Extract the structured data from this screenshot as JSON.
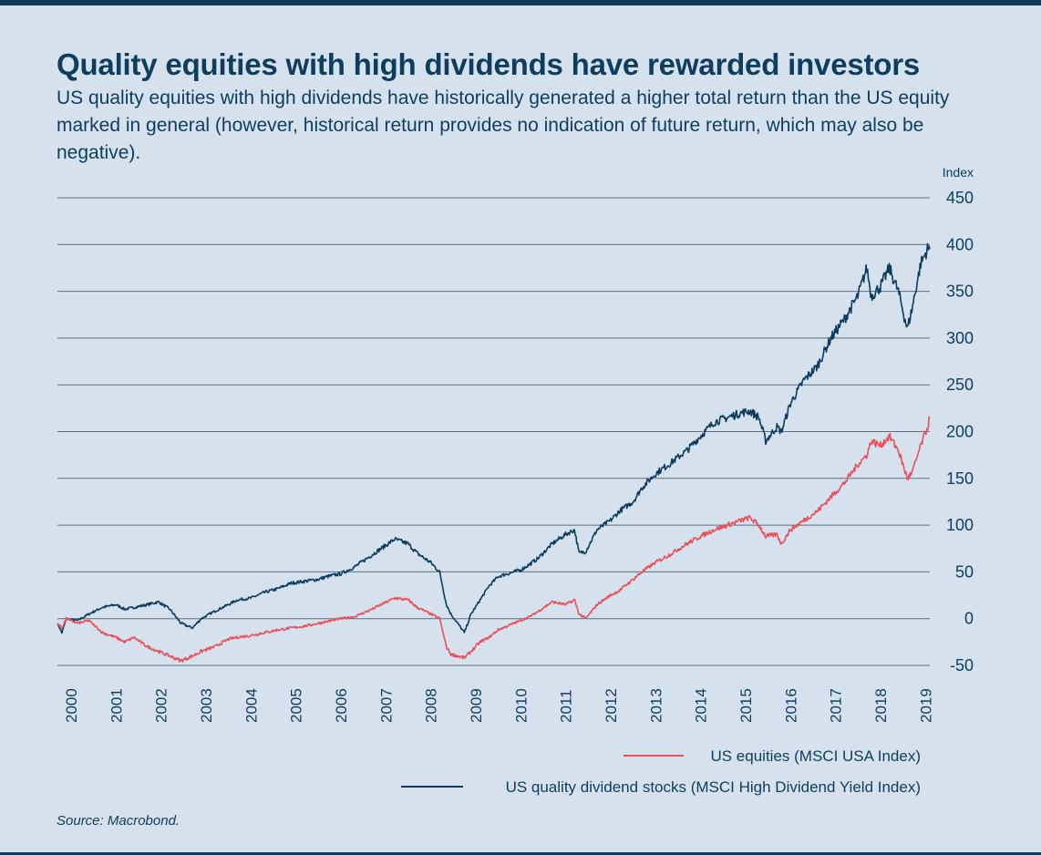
{
  "title": "Quality equities with high dividends have rewarded investors",
  "subtitle": "US quality equities with high dividends have historically generated a higher total return than the US equity marked in general (however, historical return provides no indication of future return, which may also be negative).",
  "source": "Source: Macrobond.",
  "colors": {
    "us_equities": "#e8505b",
    "quality_dividend": "#0d3c5e",
    "text": "#0f3d5e",
    "background": "#d5e1ec",
    "grid": "#5f6f7d"
  },
  "chart_data": {
    "type": "line",
    "ylabel": "Index",
    "ylim": [
      -50,
      450
    ],
    "yticks": [
      -50,
      0,
      50,
      100,
      150,
      200,
      250,
      300,
      350,
      400,
      450
    ],
    "xlim": [
      2000.0,
      2019.4
    ],
    "xticks": [
      "2000",
      "2001",
      "2002",
      "2003",
      "2004",
      "2005",
      "2006",
      "2007",
      "2008",
      "2009",
      "2010",
      "2011",
      "2012",
      "2013",
      "2014",
      "2015",
      "2016",
      "2017",
      "2018",
      "2019"
    ],
    "legend_position": "bottom-right",
    "grid": true,
    "series": [
      {
        "name": "US equities (MSCI USA Index)",
        "color": "#e8505b",
        "x": [
          2000.0,
          2000.1,
          2000.2,
          2000.45,
          2000.7,
          2001.0,
          2001.3,
          2001.5,
          2001.7,
          2002.0,
          2002.25,
          2002.5,
          2002.75,
          2003.0,
          2003.2,
          2003.5,
          2003.8,
          2004.0,
          2004.3,
          2004.6,
          2004.9,
          2005.2,
          2005.5,
          2005.8,
          2006.0,
          2006.3,
          2006.6,
          2006.9,
          2007.2,
          2007.5,
          2007.8,
          2008.0,
          2008.3,
          2008.5,
          2008.65,
          2008.75,
          2008.9,
          2009.05,
          2009.2,
          2009.4,
          2009.6,
          2009.8,
          2010.0,
          2010.3,
          2010.5,
          2010.7,
          2011.0,
          2011.3,
          2011.5,
          2011.6,
          2011.75,
          2012.0,
          2012.3,
          2012.5,
          2012.8,
          2013.0,
          2013.3,
          2013.6,
          2014.0,
          2014.3,
          2014.6,
          2014.9,
          2015.2,
          2015.4,
          2015.6,
          2015.75,
          2016.0,
          2016.1,
          2016.3,
          2016.6,
          2016.9,
          2017.2,
          2017.5,
          2017.8,
          2018.0,
          2018.1,
          2018.3,
          2018.5,
          2018.7,
          2018.9,
          2019.0,
          2019.2,
          2019.35,
          2019.4
        ],
        "values": [
          -5,
          -10,
          0,
          -5,
          -2,
          -15,
          -20,
          -25,
          -20,
          -30,
          -35,
          -40,
          -45,
          -40,
          -35,
          -30,
          -22,
          -20,
          -18,
          -15,
          -12,
          -10,
          -8,
          -5,
          -3,
          0,
          2,
          8,
          15,
          22,
          20,
          12,
          5,
          0,
          -30,
          -38,
          -40,
          -42,
          -35,
          -25,
          -20,
          -12,
          -8,
          -2,
          2,
          8,
          18,
          15,
          20,
          5,
          0,
          15,
          25,
          30,
          42,
          50,
          60,
          68,
          80,
          88,
          95,
          100,
          105,
          108,
          100,
          88,
          90,
          80,
          95,
          105,
          115,
          130,
          145,
          165,
          175,
          190,
          185,
          195,
          180,
          150,
          155,
          185,
          205,
          215
        ]
      },
      {
        "name": "US quality dividend stocks (MSCI High Dividend Yield Index)",
        "color": "#0d3c5e",
        "x": [
          2000.0,
          2000.1,
          2000.2,
          2000.45,
          2000.7,
          2001.0,
          2001.3,
          2001.5,
          2001.7,
          2002.0,
          2002.25,
          2002.5,
          2002.75,
          2003.0,
          2003.2,
          2003.5,
          2003.8,
          2004.0,
          2004.3,
          2004.6,
          2004.9,
          2005.2,
          2005.5,
          2005.8,
          2006.0,
          2006.3,
          2006.6,
          2006.9,
          2007.2,
          2007.5,
          2007.8,
          2008.0,
          2008.3,
          2008.5,
          2008.65,
          2008.75,
          2008.9,
          2009.05,
          2009.2,
          2009.4,
          2009.6,
          2009.8,
          2010.0,
          2010.3,
          2010.5,
          2010.7,
          2011.0,
          2011.3,
          2011.5,
          2011.6,
          2011.75,
          2012.0,
          2012.3,
          2012.5,
          2012.8,
          2013.0,
          2013.3,
          2013.6,
          2014.0,
          2014.3,
          2014.6,
          2014.9,
          2015.2,
          2015.4,
          2015.6,
          2015.75,
          2016.0,
          2016.1,
          2016.3,
          2016.6,
          2016.9,
          2017.2,
          2017.5,
          2017.8,
          2018.0,
          2018.1,
          2018.3,
          2018.5,
          2018.7,
          2018.9,
          2019.0,
          2019.2,
          2019.35,
          2019.4
        ],
        "values": [
          -5,
          -15,
          0,
          -2,
          5,
          12,
          15,
          10,
          12,
          15,
          18,
          10,
          -5,
          -10,
          0,
          8,
          15,
          20,
          22,
          28,
          32,
          38,
          40,
          42,
          45,
          48,
          55,
          65,
          75,
          85,
          80,
          70,
          60,
          50,
          15,
          5,
          -5,
          -15,
          5,
          20,
          35,
          45,
          48,
          52,
          58,
          65,
          80,
          90,
          95,
          70,
          72,
          95,
          105,
          115,
          125,
          140,
          155,
          165,
          180,
          195,
          210,
          215,
          220,
          222,
          215,
          190,
          205,
          200,
          230,
          255,
          270,
          300,
          320,
          345,
          375,
          345,
          355,
          375,
          350,
          310,
          330,
          380,
          395,
          395
        ]
      }
    ]
  }
}
